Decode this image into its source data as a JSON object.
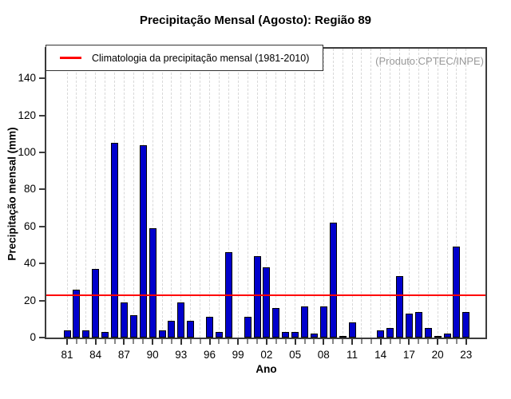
{
  "header": {
    "title": "Precipitação Mensal (Agosto): Região 89"
  },
  "legend": {
    "label": "Climatologia da precipitação mensal (1981-2010)"
  },
  "watermark": "(Produto:CPTEC/INPE)",
  "chart_data": {
    "type": "bar",
    "title": "Precipitação Mensal (Agosto): Região 89",
    "xlabel": "Ano",
    "ylabel": "Precipitação mensal (mm)",
    "ylim": [
      0,
      156
    ],
    "yticks": [
      0,
      20,
      40,
      60,
      80,
      100,
      120,
      140
    ],
    "xtick_labels": [
      "81",
      "84",
      "87",
      "90",
      "93",
      "96",
      "99",
      "02",
      "05",
      "08",
      "11",
      "14",
      "17",
      "20",
      "23"
    ],
    "categories": [
      "81",
      "82",
      "83",
      "84",
      "85",
      "86",
      "87",
      "88",
      "89",
      "90",
      "91",
      "92",
      "93",
      "94",
      "95",
      "96",
      "97",
      "98",
      "99",
      "00",
      "01",
      "02",
      "03",
      "04",
      "05",
      "06",
      "07",
      "08",
      "09",
      "10",
      "11",
      "12",
      "13",
      "14",
      "15",
      "16",
      "17",
      "18",
      "19",
      "20",
      "21",
      "22",
      "23"
    ],
    "values": [
      4,
      26,
      4,
      37,
      3,
      105,
      19,
      12,
      104,
      59,
      4,
      9,
      19,
      9,
      0,
      11,
      3,
      46,
      0,
      11,
      44,
      38,
      16,
      3,
      3,
      17,
      2,
      17,
      62,
      1,
      8,
      0,
      0,
      4,
      5,
      33,
      13,
      14,
      5,
      1,
      2,
      49,
      14
    ],
    "climatology_value": 23,
    "legend_entry": "Climatologia da precipitação mensal (1981-2010)",
    "annotation": "(Produto:CPTEC/INPE)",
    "grid": "vertical-dashed-per-year",
    "legend_position": "top-left",
    "colors": {
      "bar_fill": "#0000cc",
      "bar_border": "#000000",
      "climatology_line": "#ff0000",
      "gridline": "#d8d8d8",
      "frame": "#3c3c3c",
      "watermark": "#999999"
    }
  }
}
